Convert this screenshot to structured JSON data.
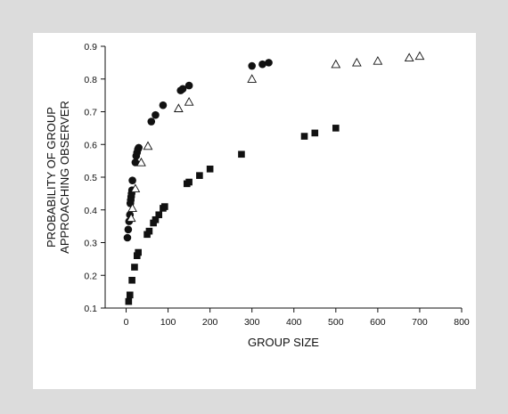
{
  "chart_data": {
    "type": "scatter",
    "title": "",
    "xlabel": "GROUP SIZE",
    "ylabel_lines": [
      "PROBABILITY OF GROUP",
      "APPROACHING OBSERVER"
    ],
    "xlim": [
      -50,
      800
    ],
    "ylim": [
      0.1,
      0.9
    ],
    "x_ticks": [
      0,
      100,
      200,
      300,
      400,
      500,
      600,
      700,
      800
    ],
    "y_ticks": [
      0.1,
      0.2,
      0.3,
      0.4,
      0.5,
      0.6,
      0.7,
      0.8,
      0.9
    ],
    "y_tick_labels": [
      "0.1",
      "0.2",
      "0.3",
      "0.4",
      "0.5",
      "0.6",
      "0.7",
      "0.8",
      "0.9"
    ],
    "grid": false,
    "legend": "none",
    "series": [
      {
        "marker": "circle",
        "color": "#111111",
        "points": [
          [
            3,
            0.315
          ],
          [
            5,
            0.34
          ],
          [
            7,
            0.365
          ],
          [
            9,
            0.385
          ],
          [
            10,
            0.42
          ],
          [
            11,
            0.43
          ],
          [
            12,
            0.44
          ],
          [
            13,
            0.45
          ],
          [
            14,
            0.46
          ],
          [
            15,
            0.49
          ],
          [
            22,
            0.545
          ],
          [
            24,
            0.565
          ],
          [
            26,
            0.575
          ],
          [
            28,
            0.585
          ],
          [
            30,
            0.59
          ],
          [
            60,
            0.67
          ],
          [
            70,
            0.69
          ],
          [
            88,
            0.72
          ],
          [
            130,
            0.765
          ],
          [
            135,
            0.77
          ],
          [
            150,
            0.78
          ],
          [
            300,
            0.84
          ],
          [
            325,
            0.845
          ],
          [
            340,
            0.85
          ]
        ]
      },
      {
        "marker": "square",
        "color": "#111111",
        "points": [
          [
            6,
            0.12
          ],
          [
            9,
            0.14
          ],
          [
            14,
            0.185
          ],
          [
            20,
            0.225
          ],
          [
            26,
            0.26
          ],
          [
            29,
            0.27
          ],
          [
            50,
            0.325
          ],
          [
            55,
            0.335
          ],
          [
            65,
            0.36
          ],
          [
            70,
            0.37
          ],
          [
            78,
            0.385
          ],
          [
            88,
            0.405
          ],
          [
            92,
            0.41
          ],
          [
            145,
            0.48
          ],
          [
            150,
            0.485
          ],
          [
            175,
            0.505
          ],
          [
            200,
            0.525
          ],
          [
            275,
            0.57
          ],
          [
            425,
            0.625
          ],
          [
            450,
            0.635
          ],
          [
            500,
            0.65
          ]
        ]
      },
      {
        "marker": "triangle",
        "color": "#111111",
        "points": [
          [
            12,
            0.375
          ],
          [
            15,
            0.405
          ],
          [
            22,
            0.465
          ],
          [
            36,
            0.545
          ],
          [
            52,
            0.595
          ],
          [
            125,
            0.71
          ],
          [
            150,
            0.73
          ],
          [
            300,
            0.8
          ],
          [
            500,
            0.845
          ],
          [
            550,
            0.85
          ],
          [
            600,
            0.855
          ],
          [
            675,
            0.865
          ],
          [
            700,
            0.87
          ]
        ]
      }
    ]
  }
}
